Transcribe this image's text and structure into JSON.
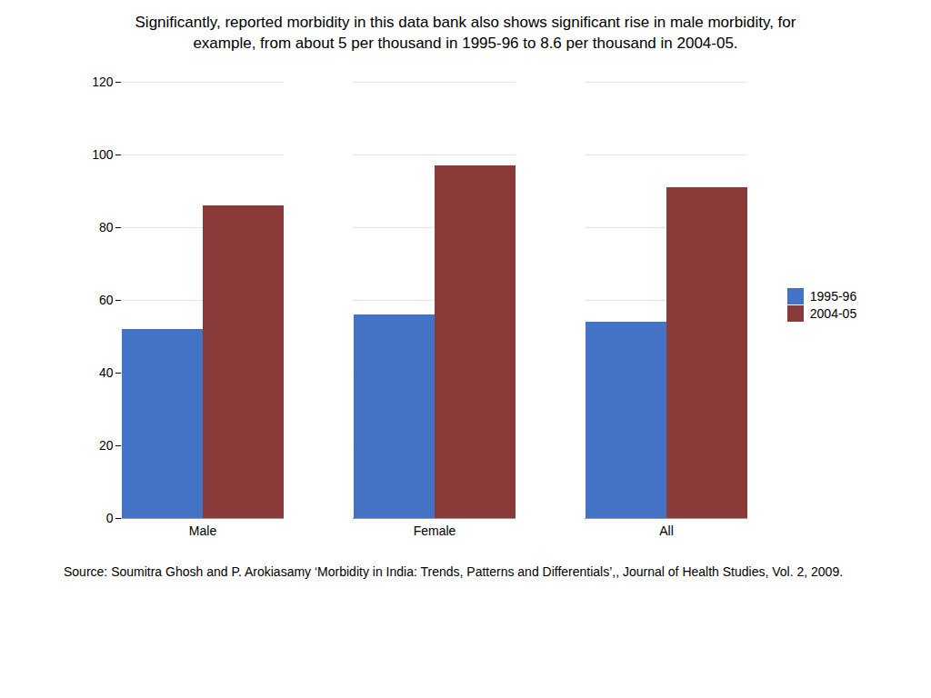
{
  "chart_data": {
    "type": "bar",
    "title": "Significantly, reported morbidity in this data bank also shows significant rise in male morbidity, for",
    "subtitle": "example, from about 5 per thousand in 1995-96 to 8.6 per thousand in 2004-05.",
    "annotations": [
      "Source: Soumitra Ghosh and P. Arokiasamy ‘Morbidity in India: Trends, Patterns and Differentials’,, Journal of Health Studies, Vol. 2, 2009."
    ],
    "categories": [
      "Male",
      "Female",
      "All"
    ],
    "series": [
      {
        "name": "1995-96",
        "color": "#4472C4",
        "values": [
          52,
          56,
          54
        ]
      },
      {
        "name": "2004-05",
        "color": "#8B3A3A",
        "values": [
          86,
          97,
          91
        ]
      }
    ],
    "ylim": [
      0,
      120
    ],
    "yticks": [
      0,
      20,
      40,
      60,
      80,
      100,
      120
    ],
    "grid": true,
    "legend": "right"
  }
}
